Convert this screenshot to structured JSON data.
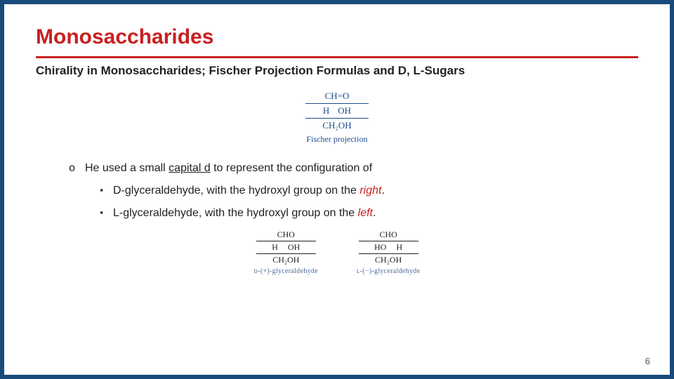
{
  "title": "Monosaccharides",
  "subtitle": "Chirality in Monosaccharides; Fischer Projection Formulas and D, L-Sugars",
  "fischer": {
    "top": "CH=O",
    "mid_left": "H",
    "mid_right": "OH",
    "bot": "CH₂OH",
    "label": "Fischer projection"
  },
  "bullet_main_mark": "o",
  "bullet_main_pre": "He used a small ",
  "bullet_main_underline": "capital d",
  "bullet_main_post": " to represent the configuration of",
  "sq_mark": "▪",
  "bullet1_pre": "D-glyceraldehyde, with the hydroxyl group on the ",
  "bullet1_red": "right",
  "bullet1_post": ".",
  "bullet2_pre": "L-glyceraldehyde, with the hydroxyl group on the ",
  "bullet2_red": "left",
  "bullet2_post": ".",
  "pair": {
    "top": "CHO",
    "bot": "CH₂OH",
    "d_left": "H",
    "d_right": "OH",
    "l_left": "HO",
    "l_right": "H",
    "d_label": "ᴅ-(+)-glyceraldehyde",
    "l_label": "ʟ-(−)-glyceraldehyde"
  },
  "page": "6"
}
